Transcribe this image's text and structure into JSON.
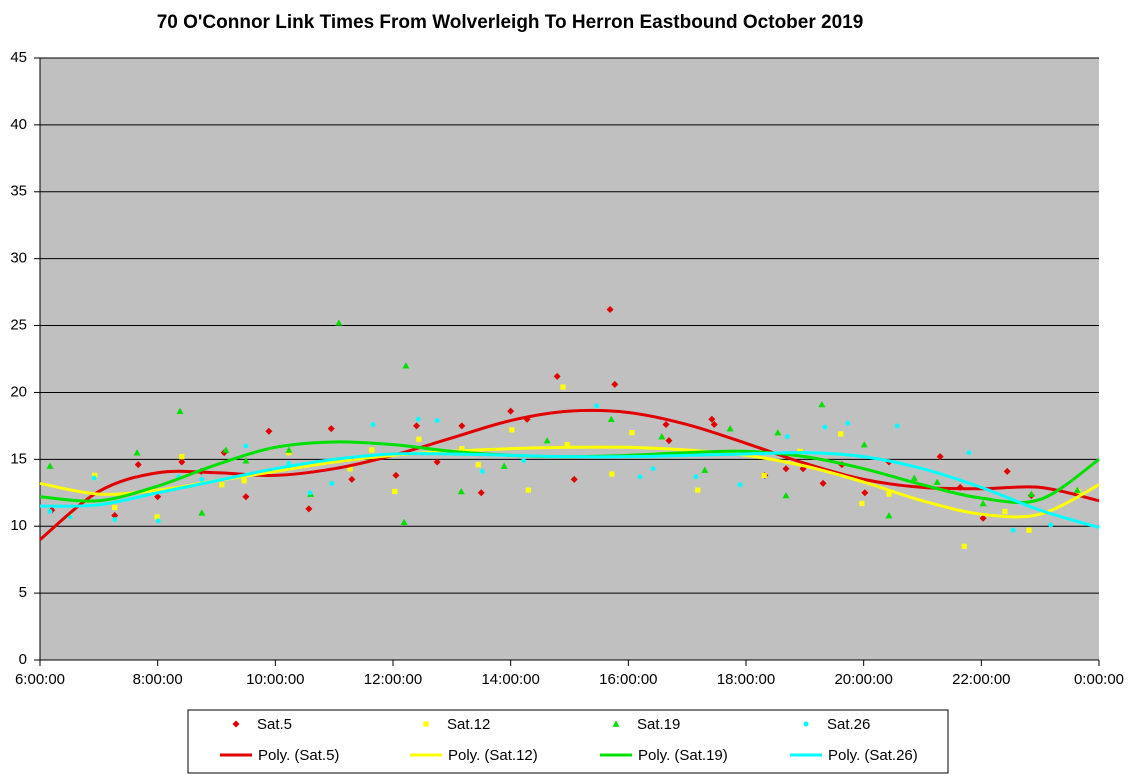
{
  "chart_data": {
    "type": "scatter",
    "title": "70 O'Connor Link Times From Wolverleigh  To Herron Eastbound  October 2019",
    "xlim": [
      6,
      24
    ],
    "ylim": [
      0,
      45
    ],
    "yticks": [
      0,
      5,
      10,
      15,
      20,
      25,
      30,
      35,
      40,
      45
    ],
    "xticks": [
      {
        "value": 6,
        "label": "6:00:00"
      },
      {
        "value": 8,
        "label": "8:00:00"
      },
      {
        "value": 10,
        "label": "10:00:00"
      },
      {
        "value": 12,
        "label": "12:00:00"
      },
      {
        "value": 14,
        "label": "14:00:00"
      },
      {
        "value": 16,
        "label": "16:00:00"
      },
      {
        "value": 18,
        "label": "18:00:00"
      },
      {
        "value": 20,
        "label": "20:00:00"
      },
      {
        "value": 22,
        "label": "22:00:00"
      },
      {
        "value": 24,
        "label": "0:00:00"
      }
    ],
    "grid": true,
    "legend": "bottom",
    "series": [
      {
        "name": "Sat.5",
        "kind": "scatter",
        "marker": "diamond",
        "color": "#e00000",
        "x": [
          6.2,
          7.67,
          7.27,
          8.0,
          8.41,
          8.74,
          9.13,
          9.5,
          9.89,
          10.57,
          10.95,
          11.3,
          12.05,
          12.4,
          12.75,
          13.17,
          13.5,
          14.0,
          14.28,
          14.79,
          15.08,
          15.69,
          15.77,
          16.64,
          16.69,
          17.42,
          17.46,
          18.32,
          18.68,
          18.97,
          19.31,
          19.63,
          20.02,
          20.43,
          21.3,
          21.64,
          22.03,
          22.44,
          22.85
        ],
        "values": [
          11.2,
          14.6,
          10.8,
          12.2,
          14.8,
          14.1,
          15.5,
          12.2,
          17.1,
          11.3,
          17.3,
          13.5,
          13.8,
          17.5,
          14.8,
          17.5,
          12.5,
          18.6,
          18.0,
          21.2,
          13.5,
          26.2,
          20.6,
          17.6,
          16.4,
          18.0,
          17.6,
          13.8,
          14.3,
          14.3,
          13.2,
          14.6,
          12.5,
          14.8,
          15.2,
          12.9,
          10.6,
          14.1,
          12.3
        ]
      },
      {
        "name": "Sat.12",
        "kind": "scatter",
        "marker": "square",
        "color": "#ffff00",
        "x": [
          6.5,
          6.93,
          7.27,
          7.99,
          8.41,
          9.09,
          9.47,
          10.23,
          11.27,
          11.64,
          12.03,
          12.44,
          13.17,
          13.45,
          14.02,
          14.3,
          14.89,
          14.96,
          15.72,
          16.06,
          17.18,
          18.31,
          18.92,
          19.61,
          19.97,
          20.43,
          21.71,
          22.4,
          22.81,
          23.64
        ],
        "values": [
          10.8,
          13.8,
          11.4,
          10.7,
          15.2,
          13.1,
          13.4,
          15.5,
          14.3,
          15.7,
          12.6,
          16.5,
          15.8,
          14.6,
          17.2,
          12.7,
          20.4,
          16.1,
          13.9,
          17.0,
          12.7,
          13.8,
          15.6,
          16.9,
          11.7,
          12.4,
          8.5,
          11.1,
          9.7,
          12.6
        ]
      },
      {
        "name": "Sat.19",
        "kind": "scatter",
        "marker": "triangle",
        "color": "#00e000",
        "x": [
          6.17,
          7.65,
          8.38,
          8.75,
          9.16,
          9.5,
          10.23,
          10.6,
          11.08,
          12.19,
          12.22,
          13.16,
          13.89,
          14.62,
          15.71,
          16.57,
          17.3,
          17.73,
          18.54,
          18.68,
          19.29,
          20.01,
          20.43,
          20.86,
          21.25,
          22.03,
          22.85,
          23.63
        ],
        "values": [
          14.5,
          15.5,
          18.6,
          11.0,
          15.7,
          14.9,
          15.7,
          12.4,
          25.2,
          10.3,
          22.0,
          12.6,
          14.5,
          16.4,
          18.0,
          16.7,
          14.2,
          17.3,
          17.0,
          12.3,
          19.1,
          16.1,
          10.8,
          13.6,
          13.3,
          11.7,
          12.4,
          12.7
        ]
      },
      {
        "name": "Sat.26",
        "kind": "scatter",
        "marker": "circle",
        "color": "#00ffff",
        "x": [
          6.17,
          6.51,
          6.92,
          7.27,
          8.01,
          8.36,
          8.75,
          9.5,
          10.23,
          10.59,
          10.96,
          11.66,
          12.43,
          12.75,
          13.52,
          14.22,
          15.46,
          16.2,
          16.42,
          17.15,
          17.9,
          18.7,
          19.34,
          19.73,
          20.57,
          21.79,
          22.54,
          23.18
        ],
        "values": [
          11.1,
          10.7,
          13.6,
          10.5,
          10.4,
          13.7,
          13.5,
          16.0,
          14.7,
          12.5,
          13.2,
          17.6,
          18.0,
          17.9,
          14.1,
          14.9,
          19.0,
          13.7,
          14.3,
          13.7,
          13.1,
          16.7,
          17.4,
          17.7,
          17.5,
          15.5,
          9.7,
          10.1
        ]
      },
      {
        "name": "Poly. (Sat.5)",
        "kind": "line",
        "color": "#e00000",
        "x": [
          6,
          7,
          8,
          9,
          10,
          11,
          12,
          13,
          14,
          15,
          16,
          17,
          18,
          19,
          20,
          21,
          22,
          23,
          24
        ],
        "values": [
          9.0,
          12.6,
          14.0,
          14.0,
          13.8,
          14.3,
          15.3,
          16.6,
          17.9,
          18.6,
          18.5,
          17.6,
          16.2,
          14.7,
          13.5,
          12.9,
          12.8,
          12.9,
          11.9
        ]
      },
      {
        "name": "Poly. (Sat.12)",
        "kind": "line",
        "color": "#ffff00",
        "x": [
          6,
          7,
          8,
          9,
          10,
          11,
          12,
          13,
          14,
          15,
          16,
          17,
          18,
          19,
          20,
          21,
          22,
          23,
          24
        ],
        "values": [
          13.2,
          12.4,
          12.7,
          13.4,
          14.1,
          14.8,
          15.3,
          15.6,
          15.8,
          15.9,
          15.9,
          15.7,
          15.3,
          14.5,
          13.3,
          11.9,
          10.9,
          10.9,
          13.1
        ]
      },
      {
        "name": "Poly. (Sat.19)",
        "kind": "line",
        "color": "#00e000",
        "x": [
          6,
          7,
          8,
          9,
          10,
          11,
          12,
          13,
          14,
          15,
          16,
          17,
          18,
          19,
          20,
          21,
          22,
          23,
          24
        ],
        "values": [
          12.2,
          11.9,
          13.0,
          14.6,
          15.9,
          16.3,
          16.1,
          15.6,
          15.3,
          15.2,
          15.3,
          15.5,
          15.6,
          15.2,
          14.3,
          13.1,
          12.1,
          12.0,
          15.0
        ]
      },
      {
        "name": "Poly. (Sat.26)",
        "kind": "line",
        "color": "#00ffff",
        "x": [
          6,
          7,
          8,
          9,
          10,
          11,
          12,
          13,
          14,
          15,
          16,
          17,
          18,
          19,
          20,
          21,
          22,
          23,
          24
        ],
        "values": [
          11.5,
          11.6,
          12.5,
          13.4,
          14.3,
          15.0,
          15.4,
          15.4,
          15.3,
          15.2,
          15.2,
          15.3,
          15.4,
          15.5,
          15.2,
          14.3,
          12.9,
          11.2,
          9.9
        ]
      }
    ]
  }
}
